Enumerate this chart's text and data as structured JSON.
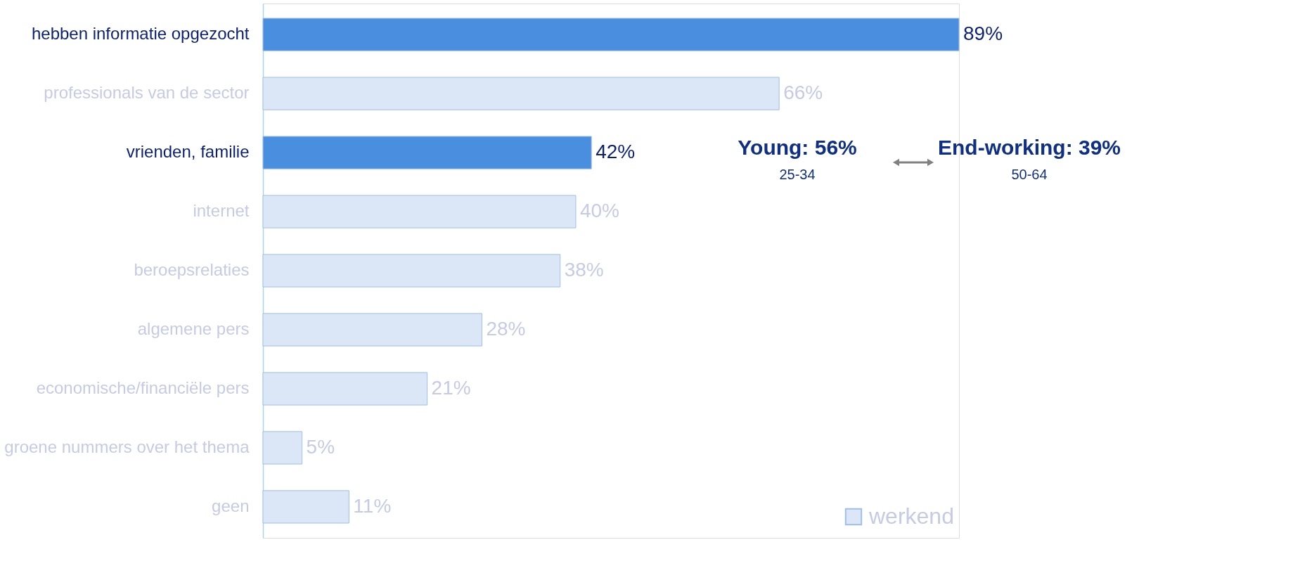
{
  "chart_data": {
    "type": "bar",
    "orientation": "horizontal",
    "legend": "bottom right",
    "categories": [
      "hebben informatie opgezocht",
      "professionals van de sector",
      "vrienden, familie",
      "internet",
      "beroepsrelaties",
      "algemene pers",
      "economische/financiële pers",
      "groene nummers over het thema",
      "geen"
    ],
    "colors": [
      "#4a8ee0",
      "#dbe6f6",
      "#4a8ee0",
      "#dbe6f6",
      "#dbe6f6",
      "#dbe6f6",
      "#dbe6f6",
      "#dbe6f6",
      "#dbe6f6"
    ],
    "series": [
      {
        "name": "werkend",
        "values": [
          89,
          66,
          42,
          40,
          38,
          28,
          21,
          5,
          11
        ],
        "value_labels": [
          "89%",
          "66%",
          "42%",
          "40%",
          "38%",
          "28%",
          "21%",
          "5%",
          "11%"
        ]
      }
    ],
    "annotations": [
      "Young: 56%",
      "25-34",
      "End-working: 39%",
      "50-64"
    ]
  }
}
